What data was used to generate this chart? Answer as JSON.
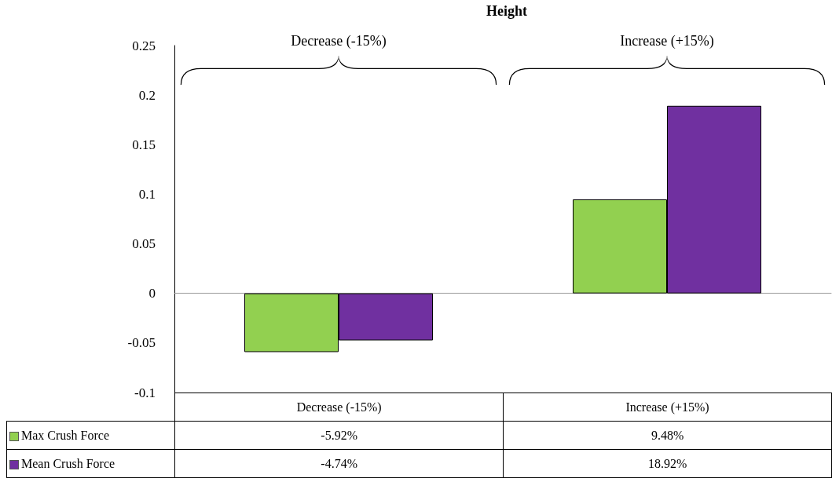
{
  "chart_data": {
    "type": "bar",
    "title": "Height",
    "categories": [
      "Decrease (-15%)",
      "Increase (+15%)"
    ],
    "series": [
      {
        "name": "Max Crush Force",
        "color": "#92d050",
        "values": [
          -0.0592,
          0.0948
        ],
        "value_labels": [
          "-5.92%",
          "9.48%"
        ]
      },
      {
        "name": "Mean Crush Force",
        "color": "#7030a0",
        "values": [
          -0.0474,
          0.1892
        ],
        "value_labels": [
          "-4.74%",
          "18.92%"
        ]
      }
    ],
    "annotations": [
      "Decrease (-15%)",
      "Increase (+15%)"
    ],
    "ylim": [
      -0.1,
      0.25
    ],
    "yticks": [
      -0.1,
      -0.05,
      0,
      0.05,
      0.1,
      0.15,
      0.2,
      0.25
    ],
    "legend": "bottom"
  }
}
